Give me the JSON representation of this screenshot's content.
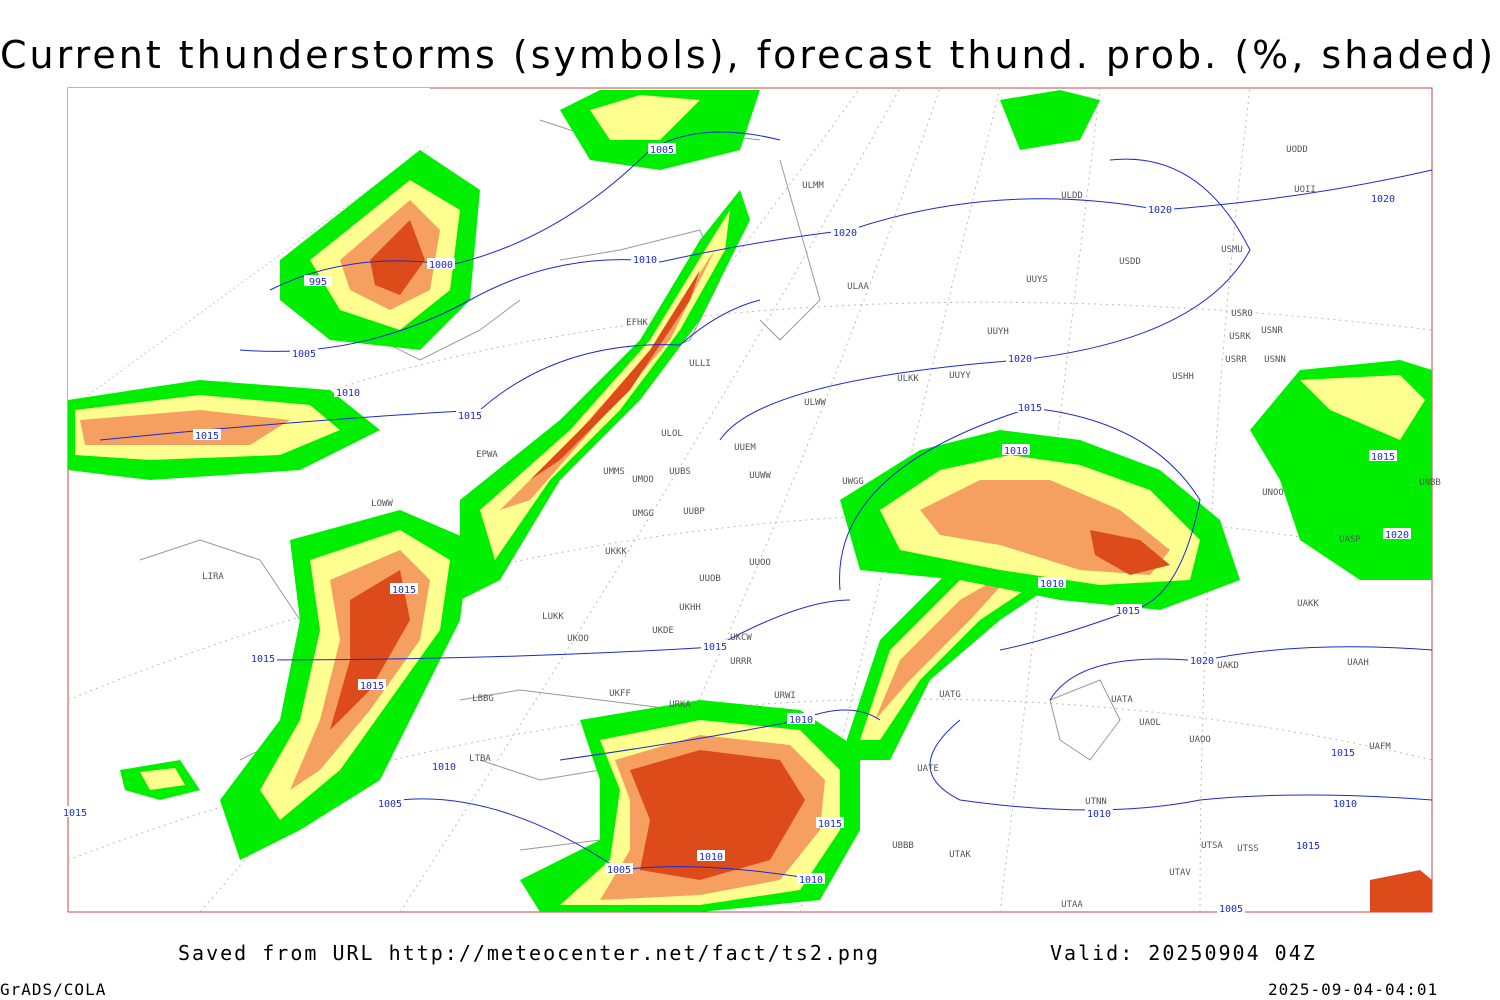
{
  "header": {
    "title": "Current thunderstorms (symbols), forecast thund. prob. (%, shaded)"
  },
  "footer": {
    "saved": "Saved from URL http://meteocenter.net/fact/ts2.png",
    "valid": "Valid: 20250904 04Z",
    "software": "GrADS/COLA",
    "timestamp": "2025-09-04-04:01"
  },
  "isobars": [
    "1005",
    "1020",
    "1010",
    "1000",
    "995",
    "1005",
    "1010",
    "1015",
    "1015",
    "1020",
    "1015",
    "1010",
    "1020",
    "1020",
    "1015",
    "1010",
    "1015",
    "1015",
    "1015",
    "1015",
    "1020",
    "1010",
    "1010",
    "1005",
    "1015",
    "1010",
    "1010",
    "1015",
    "1015",
    "1010",
    "1005",
    "1010",
    "1005",
    "1020",
    "1015",
    "1015"
  ],
  "stations": [
    "ULDD",
    "ULAA",
    "UUYS",
    "USDD",
    "USMU",
    "UUYH",
    "USRO",
    "USRK",
    "USNR",
    "USRR",
    "USNN",
    "USHH",
    "ULKK",
    "UUYY",
    "ULWW",
    "ULOL",
    "UUEM",
    "EPWA",
    "UMMS",
    "UMOO",
    "UUBS",
    "UUWW",
    "UWGG",
    "UMGG",
    "UUBP",
    "LOWW",
    "UKKK",
    "UUOO",
    "LIRA",
    "UUOB",
    "UKHH",
    "LUKK",
    "UKOO",
    "UKDE",
    "UKCW",
    "URRR",
    "LBBG",
    "UKFF",
    "URKA",
    "URWI",
    "UATG",
    "UATA",
    "UAOL",
    "UAOO",
    "UAFM",
    "LTBA",
    "UATE",
    "UTNN",
    "UTAK",
    "UBBB",
    "UTSA",
    "UTSS",
    "UTAV",
    "UTAA",
    "UAKD",
    "UAAH",
    "UAKK",
    "UNOO",
    "UNBB",
    "UASP",
    "UODD",
    "UOII",
    "ULMM",
    "EFHK",
    "ULLI"
  ]
}
